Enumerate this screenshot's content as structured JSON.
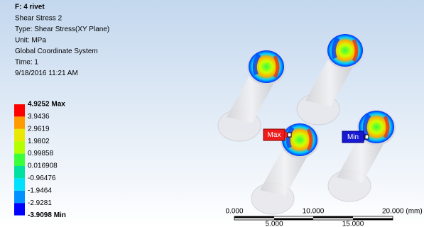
{
  "header": {
    "title": "F: 4 rivet",
    "lines": [
      "Shear Stress 2",
      "Type: Shear Stress(XY Plane)",
      "Unit: MPa",
      "Global Coordinate System",
      "Time: 1",
      "9/18/2016 11:21 AM"
    ]
  },
  "legend": {
    "labels": [
      "4.9252 Max",
      "3.9436",
      "2.9619",
      "1.9802",
      "0.99858",
      "0.016908",
      "-0.96476",
      "-1.9464",
      "-2.9281",
      "-3.9098 Min"
    ],
    "band_colors": [
      "#ff0000",
      "#ff9a00",
      "#e8e800",
      "#b4ff00",
      "#3cff3c",
      "#00e0a0",
      "#00e0ff",
      "#0090ff",
      "#0000ff"
    ]
  },
  "probes": {
    "max": "Max",
    "min": "Min"
  },
  "scale": {
    "top": [
      "0.000",
      "10.000",
      "20.000 (mm)"
    ],
    "bottom": [
      "5.000",
      "15.000"
    ]
  }
}
